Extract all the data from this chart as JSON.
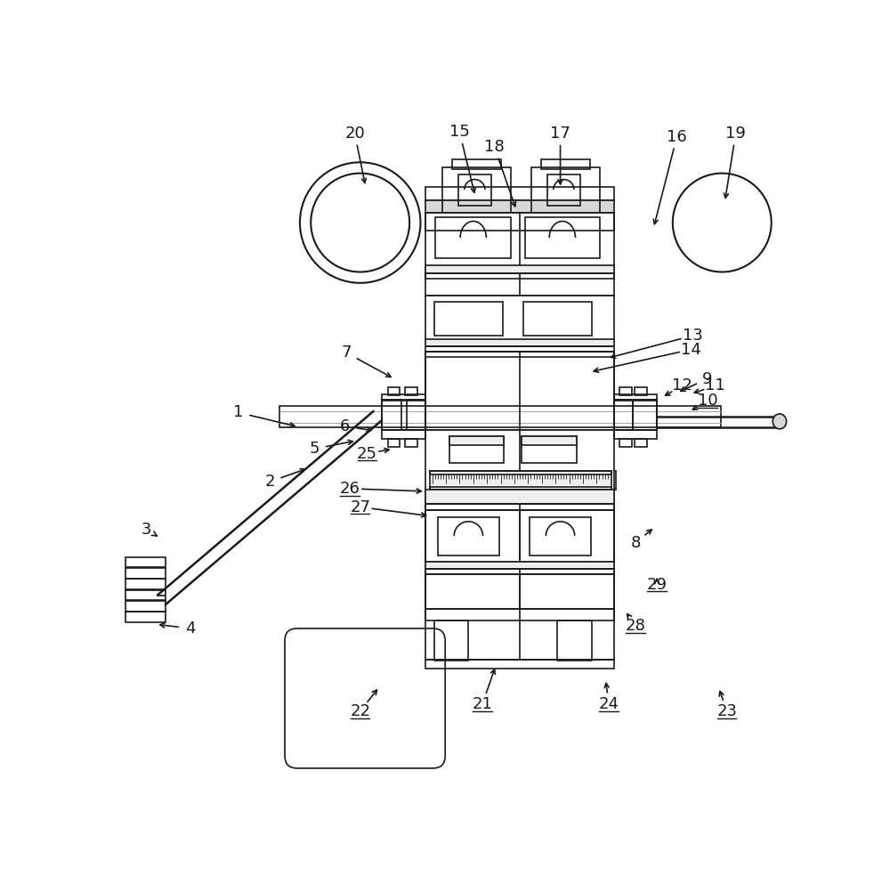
{
  "bg_color": "#ffffff",
  "line_color": "#1a1a1a",
  "lw": 1.2,
  "lw_thick": 1.8,
  "lw_thin": 0.7,
  "gray_fill": "#d8d8d8",
  "light_gray": "#eeeeee",
  "pink_line": "#cc99aa",
  "blue_line": "#99aacc",
  "label_fs": 13,
  "underlined": [
    "10",
    "21",
    "22",
    "23",
    "24",
    "25",
    "26",
    "27",
    "28",
    "29"
  ],
  "labels": [
    [
      "1",
      182,
      447,
      270,
      468
    ],
    [
      "2",
      228,
      548,
      285,
      528
    ],
    [
      "3",
      48,
      618,
      65,
      628
    ],
    [
      "4",
      112,
      762,
      62,
      756
    ],
    [
      "5",
      293,
      500,
      355,
      488
    ],
    [
      "6",
      338,
      467,
      382,
      474
    ],
    [
      "7",
      340,
      360,
      410,
      398
    ],
    [
      "8",
      762,
      637,
      790,
      614
    ],
    [
      "9",
      867,
      398,
      822,
      418
    ],
    [
      "10",
      867,
      430,
      840,
      446
    ],
    [
      "11",
      878,
      408,
      842,
      420
    ],
    [
      "12",
      830,
      408,
      800,
      425
    ],
    [
      "13",
      845,
      335,
      720,
      368
    ],
    [
      "14",
      843,
      355,
      695,
      388
    ],
    [
      "15",
      505,
      38,
      528,
      132
    ],
    [
      "16",
      822,
      45,
      788,
      178
    ],
    [
      "17",
      652,
      40,
      652,
      120
    ],
    [
      "18",
      556,
      60,
      588,
      152
    ],
    [
      "19",
      908,
      40,
      892,
      140
    ],
    [
      "20",
      352,
      40,
      368,
      118
    ],
    [
      "21",
      538,
      873,
      558,
      816
    ],
    [
      "22",
      360,
      883,
      388,
      847
    ],
    [
      "23",
      895,
      883,
      883,
      848
    ],
    [
      "24",
      723,
      873,
      718,
      836
    ],
    [
      "25",
      370,
      507,
      408,
      500
    ],
    [
      "26",
      345,
      558,
      455,
      562
    ],
    [
      "27",
      360,
      585,
      462,
      598
    ],
    [
      "28",
      762,
      758,
      746,
      736
    ],
    [
      "29",
      793,
      698,
      793,
      688
    ]
  ]
}
